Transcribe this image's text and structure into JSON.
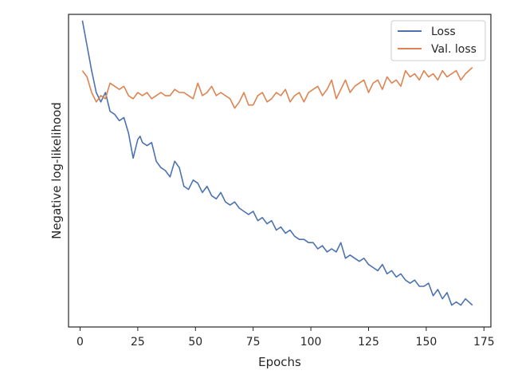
{
  "chart_data": {
    "type": "line",
    "xlabel": "Epochs",
    "ylabel": "Negative log-likelihood",
    "xlim": [
      -5,
      178
    ],
    "ylim": [
      0,
      1
    ],
    "x_ticks": [
      0,
      25,
      50,
      75,
      100,
      125,
      150,
      175
    ],
    "y_ticks_shown": false,
    "grid": false,
    "legend_position": "upper right",
    "series": [
      {
        "name": "Loss",
        "color": "#4c72b0",
        "x": [
          1,
          3,
          5,
          7,
          9,
          11,
          13,
          15,
          17,
          19,
          21,
          23,
          25,
          26,
          27,
          29,
          31,
          33,
          35,
          37,
          39,
          41,
          43,
          45,
          47,
          49,
          51,
          53,
          55,
          57,
          59,
          61,
          63,
          65,
          67,
          69,
          71,
          73,
          75,
          77,
          79,
          81,
          83,
          85,
          87,
          89,
          91,
          93,
          95,
          97,
          99,
          101,
          103,
          105,
          107,
          109,
          111,
          113,
          115,
          117,
          119,
          121,
          123,
          125,
          127,
          129,
          131,
          133,
          135,
          137,
          139,
          141,
          143,
          145,
          147,
          149,
          151,
          153,
          155,
          157,
          159,
          161,
          163,
          165,
          167,
          170
        ],
        "values": [
          0.98,
          0.9,
          0.82,
          0.75,
          0.72,
          0.75,
          0.69,
          0.68,
          0.66,
          0.67,
          0.62,
          0.54,
          0.6,
          0.61,
          0.59,
          0.58,
          0.59,
          0.53,
          0.51,
          0.5,
          0.48,
          0.53,
          0.51,
          0.45,
          0.44,
          0.47,
          0.46,
          0.43,
          0.45,
          0.42,
          0.41,
          0.43,
          0.4,
          0.39,
          0.4,
          0.38,
          0.37,
          0.36,
          0.37,
          0.34,
          0.35,
          0.33,
          0.34,
          0.31,
          0.32,
          0.3,
          0.31,
          0.29,
          0.28,
          0.28,
          0.27,
          0.27,
          0.25,
          0.26,
          0.24,
          0.25,
          0.24,
          0.27,
          0.22,
          0.23,
          0.22,
          0.21,
          0.22,
          0.2,
          0.19,
          0.18,
          0.2,
          0.17,
          0.18,
          0.16,
          0.17,
          0.15,
          0.14,
          0.15,
          0.13,
          0.13,
          0.14,
          0.1,
          0.12,
          0.09,
          0.11,
          0.07,
          0.08,
          0.07,
          0.09,
          0.07
        ]
      },
      {
        "name": "Val. loss",
        "color": "#dd8452",
        "x": [
          1,
          3,
          5,
          7,
          9,
          11,
          13,
          15,
          17,
          19,
          21,
          23,
          25,
          27,
          29,
          31,
          33,
          35,
          37,
          39,
          41,
          43,
          45,
          47,
          49,
          51,
          53,
          55,
          57,
          59,
          61,
          63,
          65,
          67,
          69,
          71,
          73,
          75,
          77,
          79,
          81,
          83,
          85,
          87,
          89,
          91,
          93,
          95,
          97,
          99,
          101,
          103,
          105,
          107,
          109,
          111,
          113,
          115,
          117,
          119,
          121,
          123,
          125,
          127,
          129,
          131,
          133,
          135,
          137,
          139,
          141,
          143,
          145,
          147,
          149,
          151,
          153,
          155,
          157,
          159,
          161,
          163,
          165,
          167,
          170
        ],
        "values": [
          0.82,
          0.8,
          0.75,
          0.72,
          0.74,
          0.73,
          0.78,
          0.77,
          0.76,
          0.77,
          0.74,
          0.73,
          0.75,
          0.74,
          0.75,
          0.73,
          0.74,
          0.75,
          0.74,
          0.74,
          0.76,
          0.75,
          0.75,
          0.74,
          0.73,
          0.78,
          0.74,
          0.75,
          0.77,
          0.74,
          0.75,
          0.74,
          0.73,
          0.7,
          0.72,
          0.75,
          0.71,
          0.71,
          0.74,
          0.75,
          0.72,
          0.73,
          0.75,
          0.74,
          0.76,
          0.72,
          0.74,
          0.75,
          0.72,
          0.75,
          0.76,
          0.77,
          0.74,
          0.76,
          0.79,
          0.73,
          0.76,
          0.79,
          0.75,
          0.77,
          0.78,
          0.79,
          0.75,
          0.78,
          0.79,
          0.76,
          0.8,
          0.78,
          0.79,
          0.77,
          0.82,
          0.8,
          0.81,
          0.79,
          0.82,
          0.8,
          0.81,
          0.79,
          0.82,
          0.8,
          0.81,
          0.82,
          0.79,
          0.81,
          0.83
        ]
      }
    ]
  }
}
